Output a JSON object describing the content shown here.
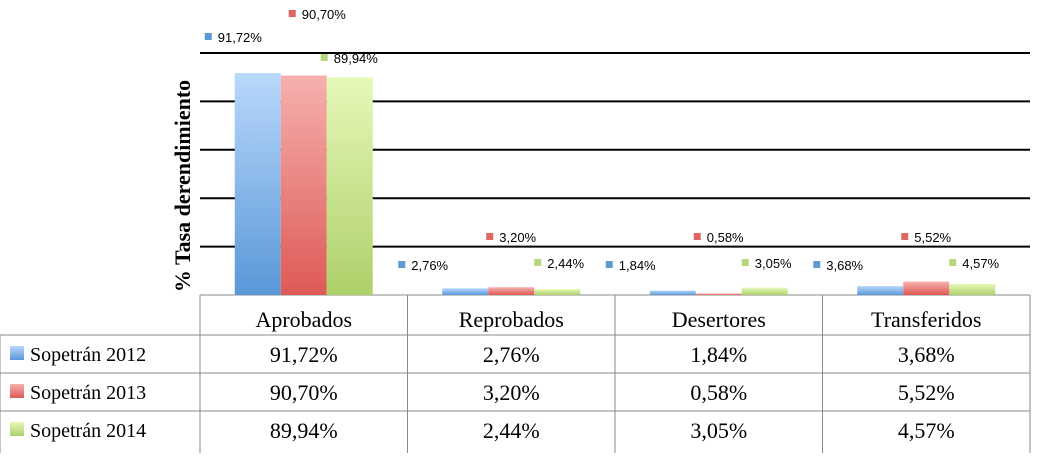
{
  "chart_data": {
    "type": "bar",
    "title": "",
    "xlabel": "",
    "ylabel": "% Tasa derendimiento",
    "ylim": [
      0,
      100
    ],
    "gridlines": true,
    "legend_placement": "bottom-table",
    "categories": [
      "Aprobados",
      "Reprobados",
      "Desertores",
      "Transferidos"
    ],
    "series": [
      {
        "name": "Sopetrán 2012",
        "color": "#5b9bd5",
        "values": [
          91.72,
          2.76,
          1.84,
          3.68
        ],
        "labels": [
          "91,72%",
          "2,76%",
          "1,84%",
          "3,68%"
        ]
      },
      {
        "name": "Sopetrán 2013",
        "color": "#e06666",
        "values": [
          90.7,
          3.2,
          0.58,
          5.52
        ],
        "labels": [
          "90,70%",
          "3,20%",
          "0,58%",
          "5,52%"
        ]
      },
      {
        "name": "Sopetrán 2014",
        "color": "#b6d77a",
        "values": [
          89.94,
          2.44,
          3.05,
          4.57
        ],
        "labels": [
          "89,94%",
          "2,44%",
          "3,05%",
          "4,57%"
        ]
      }
    ]
  }
}
